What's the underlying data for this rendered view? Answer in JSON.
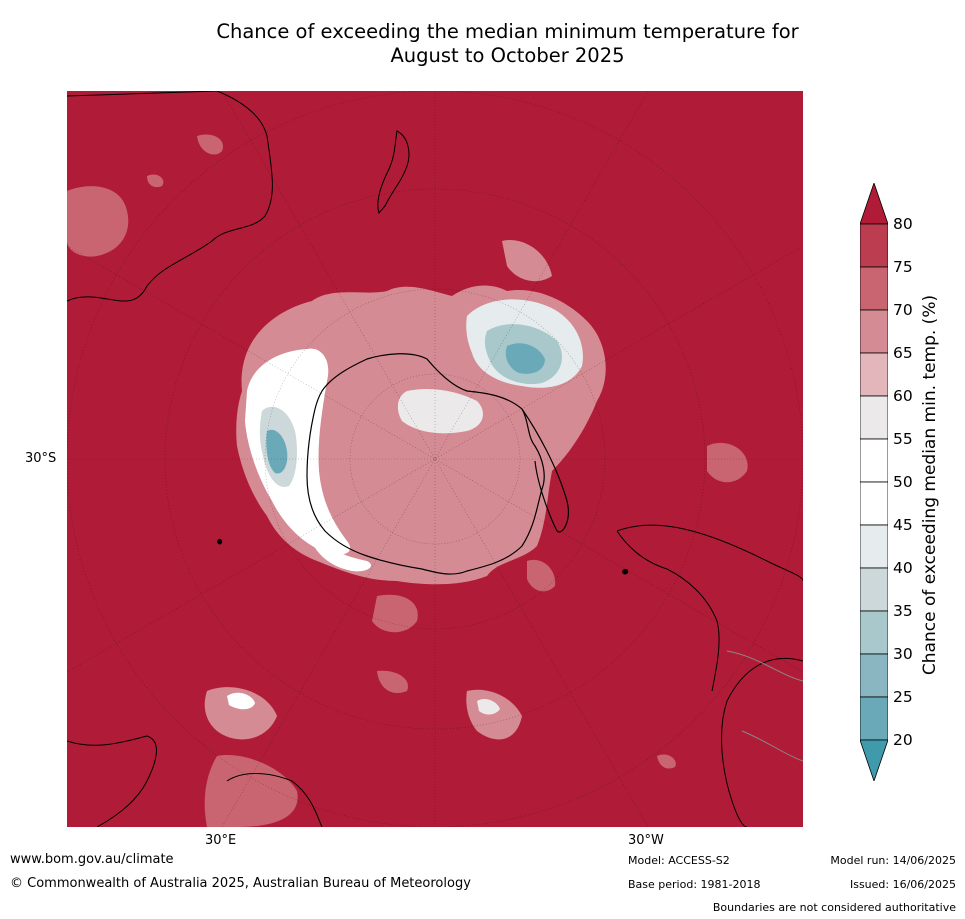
{
  "title": {
    "line1": "Chance of exceeding the median minimum temperature for",
    "line2": "August to October 2025"
  },
  "map": {
    "projection": "south polar view",
    "lat_label": "30°S",
    "lon_labels": {
      "east": "30°E",
      "west": "30°W"
    },
    "base_color": "#b01c37",
    "features": [
      "Antarctica",
      "Australia",
      "New Zealand",
      "South America",
      "Southern Africa",
      "Madagascar"
    ]
  },
  "colorbar": {
    "label": "Chance of exceeding median min. temp. (%)",
    "ticks": [
      "80",
      "75",
      "70",
      "65",
      "60",
      "55",
      "50",
      "45",
      "40",
      "35",
      "30",
      "25",
      "20"
    ],
    "colors": {
      "above_80": "#b01c37",
      "75_80": "#bd3d50",
      "70_75": "#c96571",
      "65_70": "#d58b93",
      "60_65": "#e2b6ba",
      "55_60": "#ebe9e9",
      "50_55": "#ffffff",
      "45_50": "#ffffff",
      "40_45": "#e6ebee",
      "35_40": "#cdd8db",
      "30_35": "#a8c8cc",
      "25_30": "#8ab6c2",
      "20_25": "#6aaab8",
      "below_20": "#3f9aab"
    }
  },
  "footer": {
    "website": "www.bom.gov.au/climate",
    "copyright": "© Commonwealth of Australia 2025, Australian Bureau of Meteorology",
    "model": "Model: ACCESS-S2",
    "base_period": "Base period: 1981-2018",
    "model_run": "Model run: 14/06/2025",
    "issued": "Issued: 16/06/2025",
    "disclaimer": "Boundaries are not considered authoritative"
  }
}
